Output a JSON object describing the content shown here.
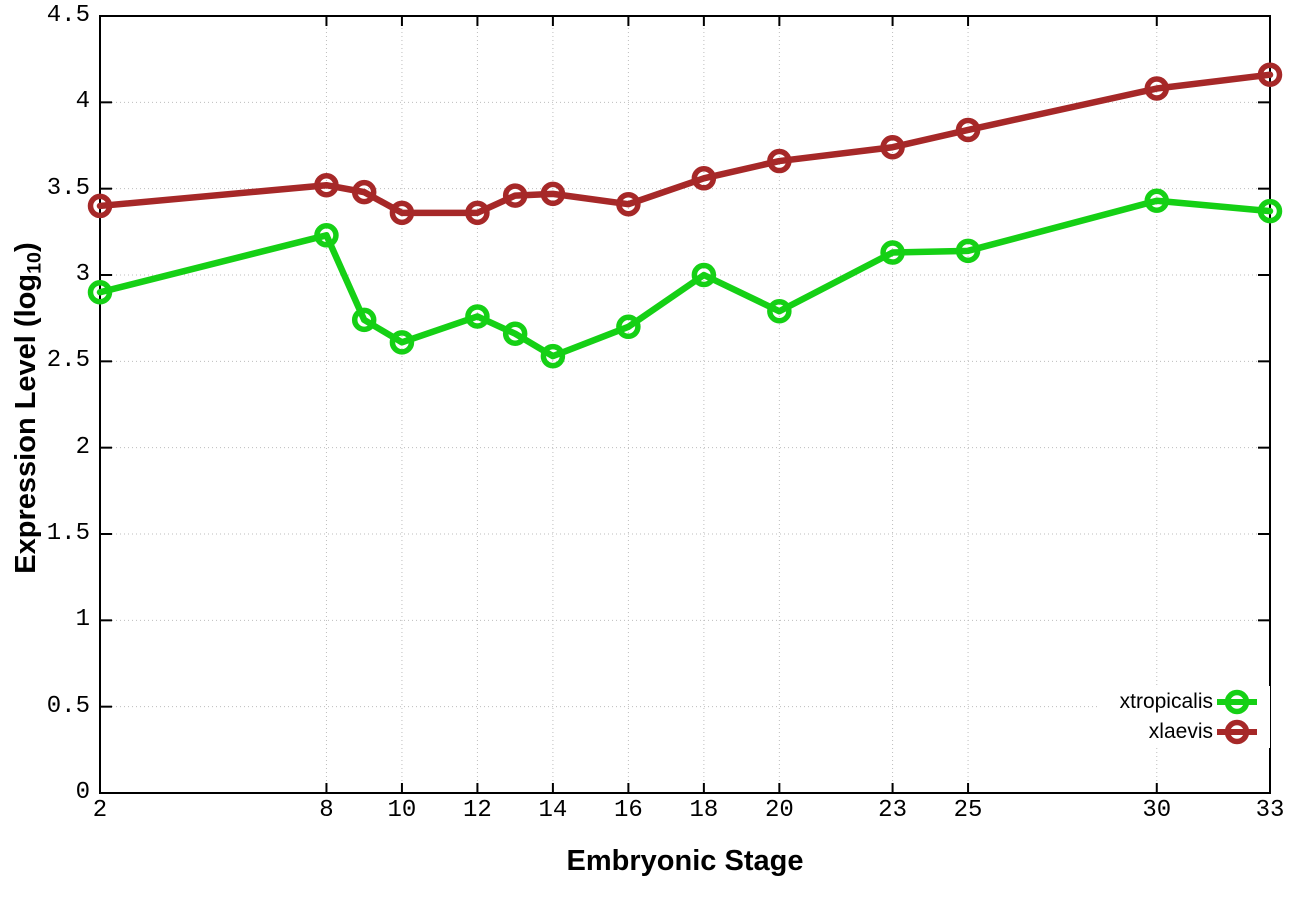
{
  "chart_data": {
    "type": "line",
    "title": "",
    "xlabel": "Embryonic Stage",
    "ylabel": "Expression Level (log10)",
    "ylabel_parts": {
      "main": "Expression Level (log",
      "sub": "10",
      "close": ")"
    },
    "x": [
      2,
      8,
      9,
      10,
      12,
      13,
      14,
      16,
      18,
      20,
      23,
      25,
      30,
      33
    ],
    "series": [
      {
        "name": "xtropicalis",
        "color": "#15d015",
        "values": [
          2.9,
          3.23,
          2.74,
          2.61,
          2.76,
          2.66,
          2.53,
          2.7,
          3.0,
          2.79,
          3.13,
          3.14,
          3.43,
          3.37
        ]
      },
      {
        "name": "xlaevis",
        "color": "#a62828",
        "values": [
          3.4,
          3.52,
          3.48,
          3.36,
          3.36,
          3.46,
          3.47,
          3.41,
          3.56,
          3.66,
          3.74,
          3.84,
          4.08,
          4.16
        ]
      }
    ],
    "xlim": [
      2,
      33
    ],
    "ylim": [
      0,
      4.5
    ],
    "xticks": [
      {
        "v": 2,
        "label": "2"
      },
      {
        "v": 8,
        "label": "8"
      },
      {
        "v": 10,
        "label": "10"
      },
      {
        "v": 12,
        "label": "12"
      },
      {
        "v": 14,
        "label": "14"
      },
      {
        "v": 16,
        "label": "16"
      },
      {
        "v": 18,
        "label": "18"
      },
      {
        "v": 20,
        "label": "20"
      },
      {
        "v": 23,
        "label": "23"
      },
      {
        "v": 25,
        "label": "25"
      },
      {
        "v": 30,
        "label": "30"
      },
      {
        "v": 33,
        "label": "33"
      }
    ],
    "yticks": [
      {
        "v": 0,
        "label": "0"
      },
      {
        "v": 0.5,
        "label": "0.5"
      },
      {
        "v": 1,
        "label": "1"
      },
      {
        "v": 1.5,
        "label": "1.5"
      },
      {
        "v": 2,
        "label": "2"
      },
      {
        "v": 2.5,
        "label": "2.5"
      },
      {
        "v": 3,
        "label": "3"
      },
      {
        "v": 3.5,
        "label": "3.5"
      },
      {
        "v": 4,
        "label": "4"
      },
      {
        "v": 4.5,
        "label": "4.5"
      }
    ],
    "grid": true,
    "legend_position": "inside-bottom-right",
    "marker": "open-circle",
    "colors": {
      "axis": "#000000",
      "grid": "#bdbdbd",
      "background": "#ffffff"
    }
  }
}
